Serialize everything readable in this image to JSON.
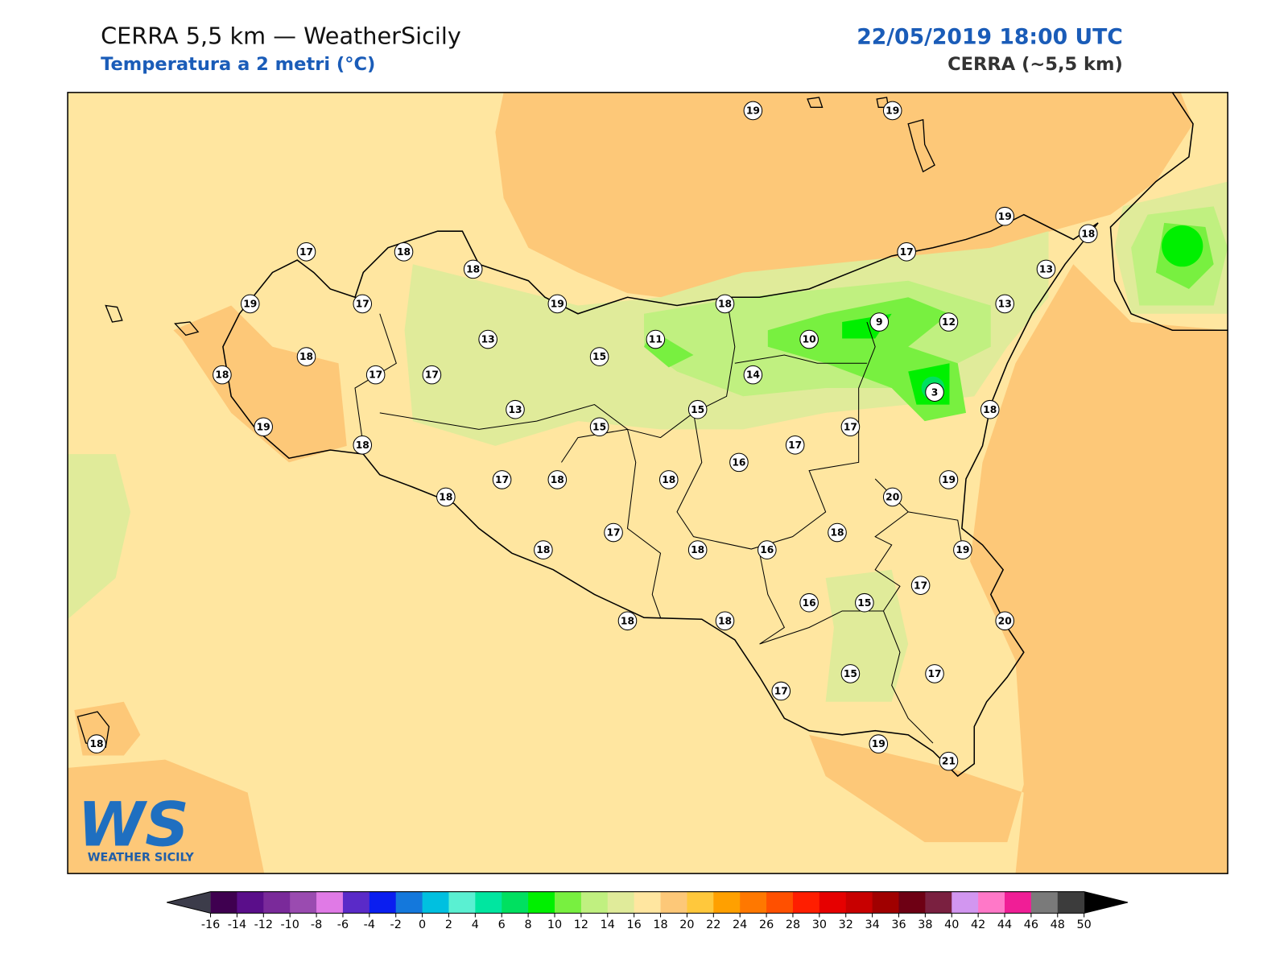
{
  "header": {
    "title": "CERRA 5,5 km — WeatherSicily",
    "subtitle": "Temperatura a 2 metri (°C)",
    "datetime": "22/05/2019 18:00 UTC",
    "model": "CERRA (~5,5 km)"
  },
  "stations": [
    19,
    19,
    19,
    18,
    17,
    17,
    18,
    18,
    19,
    17,
    19,
    18,
    13,
    13,
    12,
    9,
    10,
    11,
    13,
    15,
    18,
    18,
    17,
    17,
    14,
    3,
    13,
    15,
    18,
    19,
    15,
    17,
    18,
    17,
    16,
    17,
    18,
    18,
    19,
    20,
    18,
    18,
    17,
    18,
    18,
    16,
    19,
    17,
    16,
    15,
    20,
    18,
    18,
    15,
    17,
    17,
    19,
    21,
    18
  ],
  "logo": {
    "mark": "WS",
    "name": "WEATHER SICILY"
  },
  "colorbar": {
    "ticks": [
      -16,
      -14,
      -12,
      -10,
      -8,
      -6,
      -4,
      -2,
      0,
      2,
      4,
      6,
      8,
      10,
      12,
      14,
      16,
      18,
      20,
      22,
      24,
      26,
      28,
      30,
      32,
      34,
      36,
      38,
      40,
      42,
      44,
      46,
      48,
      50
    ],
    "colors": [
      "#3f0050",
      "#5a0e8a",
      "#7a2a9a",
      "#9a4bb0",
      "#e07ae6",
      "#5a2ac8",
      "#0a1ef0",
      "#1478dc",
      "#00c0e0",
      "#5af0d2",
      "#00e6a0",
      "#00e060",
      "#00f000",
      "#78f040",
      "#c0f080",
      "#e0eb9a",
      "#ffe6a0",
      "#fdc878",
      "#ffc83c",
      "#ffa000",
      "#ff7800",
      "#ff5000",
      "#ff1e00",
      "#e60000",
      "#c80000",
      "#a00000",
      "#6e0014",
      "#7a2040",
      "#d296f0",
      "#ff78c8",
      "#f01e96",
      "#7a7a7a",
      "#3c3c3c"
    ],
    "under_color": "#3c3c4a",
    "over_color": "#000000"
  }
}
